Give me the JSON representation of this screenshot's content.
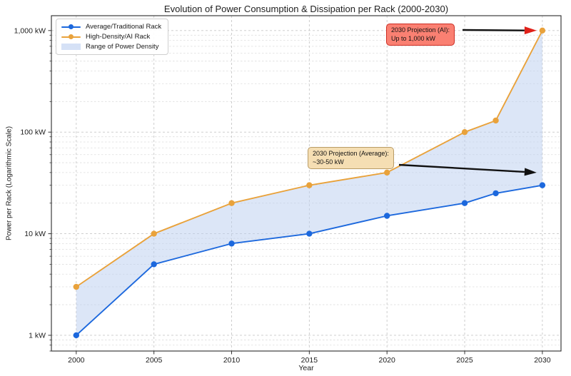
{
  "chart_data": {
    "type": "line",
    "title": "Evolution of Power Consumption & Dissipation per Rack (2000-2030)",
    "xlabel": "Year",
    "ylabel": "Power per Rack (Logarithmic Scale)",
    "y_scale": "log",
    "grid": "dashed",
    "legend_position": "upper left",
    "x": [
      2000,
      2005,
      2010,
      2015,
      2020,
      2025,
      2027,
      2030
    ],
    "series": [
      {
        "name": "Average/Traditional Rack",
        "color": "#1c68dd",
        "values": [
          1,
          5,
          8,
          10,
          15,
          20,
          25,
          30
        ]
      },
      {
        "name": "High-Density/AI Rack",
        "color": "#e9a23b",
        "values": [
          3,
          10,
          20,
          30,
          40,
          100,
          130,
          1000
        ]
      }
    ],
    "band": {
      "name": "Range of Power Density",
      "color": "#b9cdf0",
      "opacity": 0.5
    },
    "xlim": [
      1998.4,
      2031.2
    ],
    "ylim": [
      0.7,
      1400
    ],
    "x_ticks": [
      {
        "v": 2000,
        "label": "2000"
      },
      {
        "v": 2005,
        "label": "2005"
      },
      {
        "v": 2010,
        "label": "2010"
      },
      {
        "v": 2015,
        "label": "2015"
      },
      {
        "v": 2020,
        "label": "2020"
      },
      {
        "v": 2025,
        "label": "2025"
      },
      {
        "v": 2030,
        "label": "2030"
      }
    ],
    "y_ticks": [
      {
        "v": 1,
        "label": "1 kW"
      },
      {
        "v": 10,
        "label": "10 kW"
      },
      {
        "v": 100,
        "label": "100 kW"
      },
      {
        "v": 1000,
        "label": "1,000 kW"
      }
    ],
    "annotations": [
      {
        "id": "ai",
        "line1": "2030 Projection (AI):",
        "line2": "Up to 1,000 kW",
        "bg": "#fa8072",
        "border": "#cc2d23",
        "arrow_head_color": "#e0211a",
        "target_x": 2030,
        "target_y": 1000
      },
      {
        "id": "avg",
        "line1": "2030 Projection (Average):",
        "line2": "~30-50 kW",
        "bg": "#f5deb3",
        "border": "#b99c66",
        "arrow_head_color": "#111111",
        "target_x": 2030,
        "target_y": 40
      }
    ]
  }
}
